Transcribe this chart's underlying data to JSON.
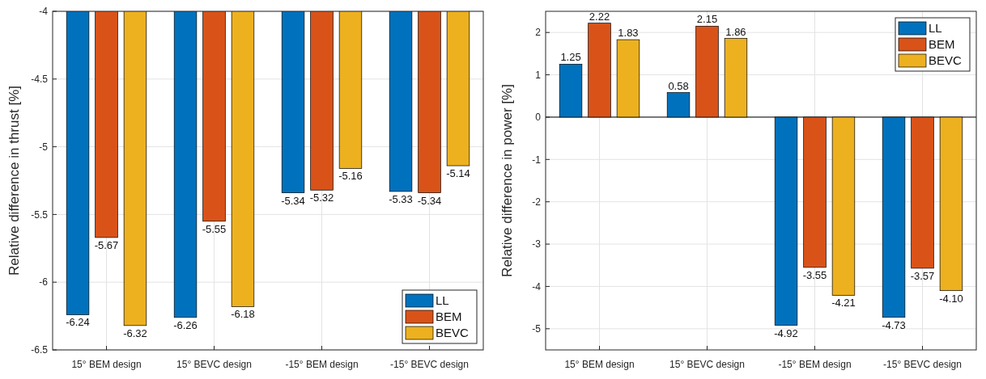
{
  "chart_data": [
    {
      "type": "bar",
      "ylabel": "Relative difference in thrust [%]",
      "categories": [
        "15° BEM design",
        "15° BEVC design",
        "-15° BEM design",
        "-15° BEVC design"
      ],
      "series": [
        {
          "name": "LL",
          "color": "#0072bd",
          "values": [
            -6.24,
            -6.26,
            -5.34,
            -5.33
          ],
          "value_labels": [
            "-6.24",
            "-6.26",
            "-5.34",
            "-5.33"
          ]
        },
        {
          "name": "BEM",
          "color": "#d95319",
          "values": [
            -5.67,
            -5.55,
            -5.32,
            -5.34
          ],
          "value_labels": [
            "-5.67",
            "-5.55",
            "-5.32",
            "-5.34"
          ]
        },
        {
          "name": "BEVC",
          "color": "#edb120",
          "values": [
            -6.32,
            -6.18,
            -5.16,
            -5.14
          ],
          "value_labels": [
            "-6.32",
            "-6.18",
            "-5.16",
            "-5.14"
          ]
        }
      ],
      "ylim": [
        -6.5,
        -4
      ],
      "yticks": [
        -6.5,
        -6,
        -5.5,
        -5,
        -4.5,
        -4
      ],
      "grid": true,
      "legend": "bottom right"
    },
    {
      "type": "bar",
      "ylabel": "Relative difference in power [%]",
      "categories": [
        "15° BEM design",
        "15° BEVC design",
        "-15° BEM design",
        "-15° BEVC design"
      ],
      "series": [
        {
          "name": "LL",
          "color": "#0072bd",
          "values": [
            1.25,
            0.58,
            -4.92,
            -4.73
          ],
          "value_labels": [
            "1.25",
            "0.58",
            "-4.92",
            "-4.73"
          ]
        },
        {
          "name": "BEM",
          "color": "#d95319",
          "values": [
            2.22,
            2.15,
            -3.55,
            -3.57
          ],
          "value_labels": [
            "2.22",
            "2.15",
            "-3.55",
            "-3.57"
          ]
        },
        {
          "name": "BEVC",
          "color": "#edb120",
          "values": [
            1.83,
            1.86,
            -4.21,
            -4.1
          ],
          "value_labels": [
            "1.83",
            "1.86",
            "-4.21",
            "-4.10"
          ]
        }
      ],
      "ylim": [
        -5.5,
        2.5
      ],
      "yticks": [
        -5,
        -4,
        -3,
        -2,
        -1,
        0,
        1,
        2
      ],
      "grid": true,
      "legend": "top right"
    }
  ]
}
